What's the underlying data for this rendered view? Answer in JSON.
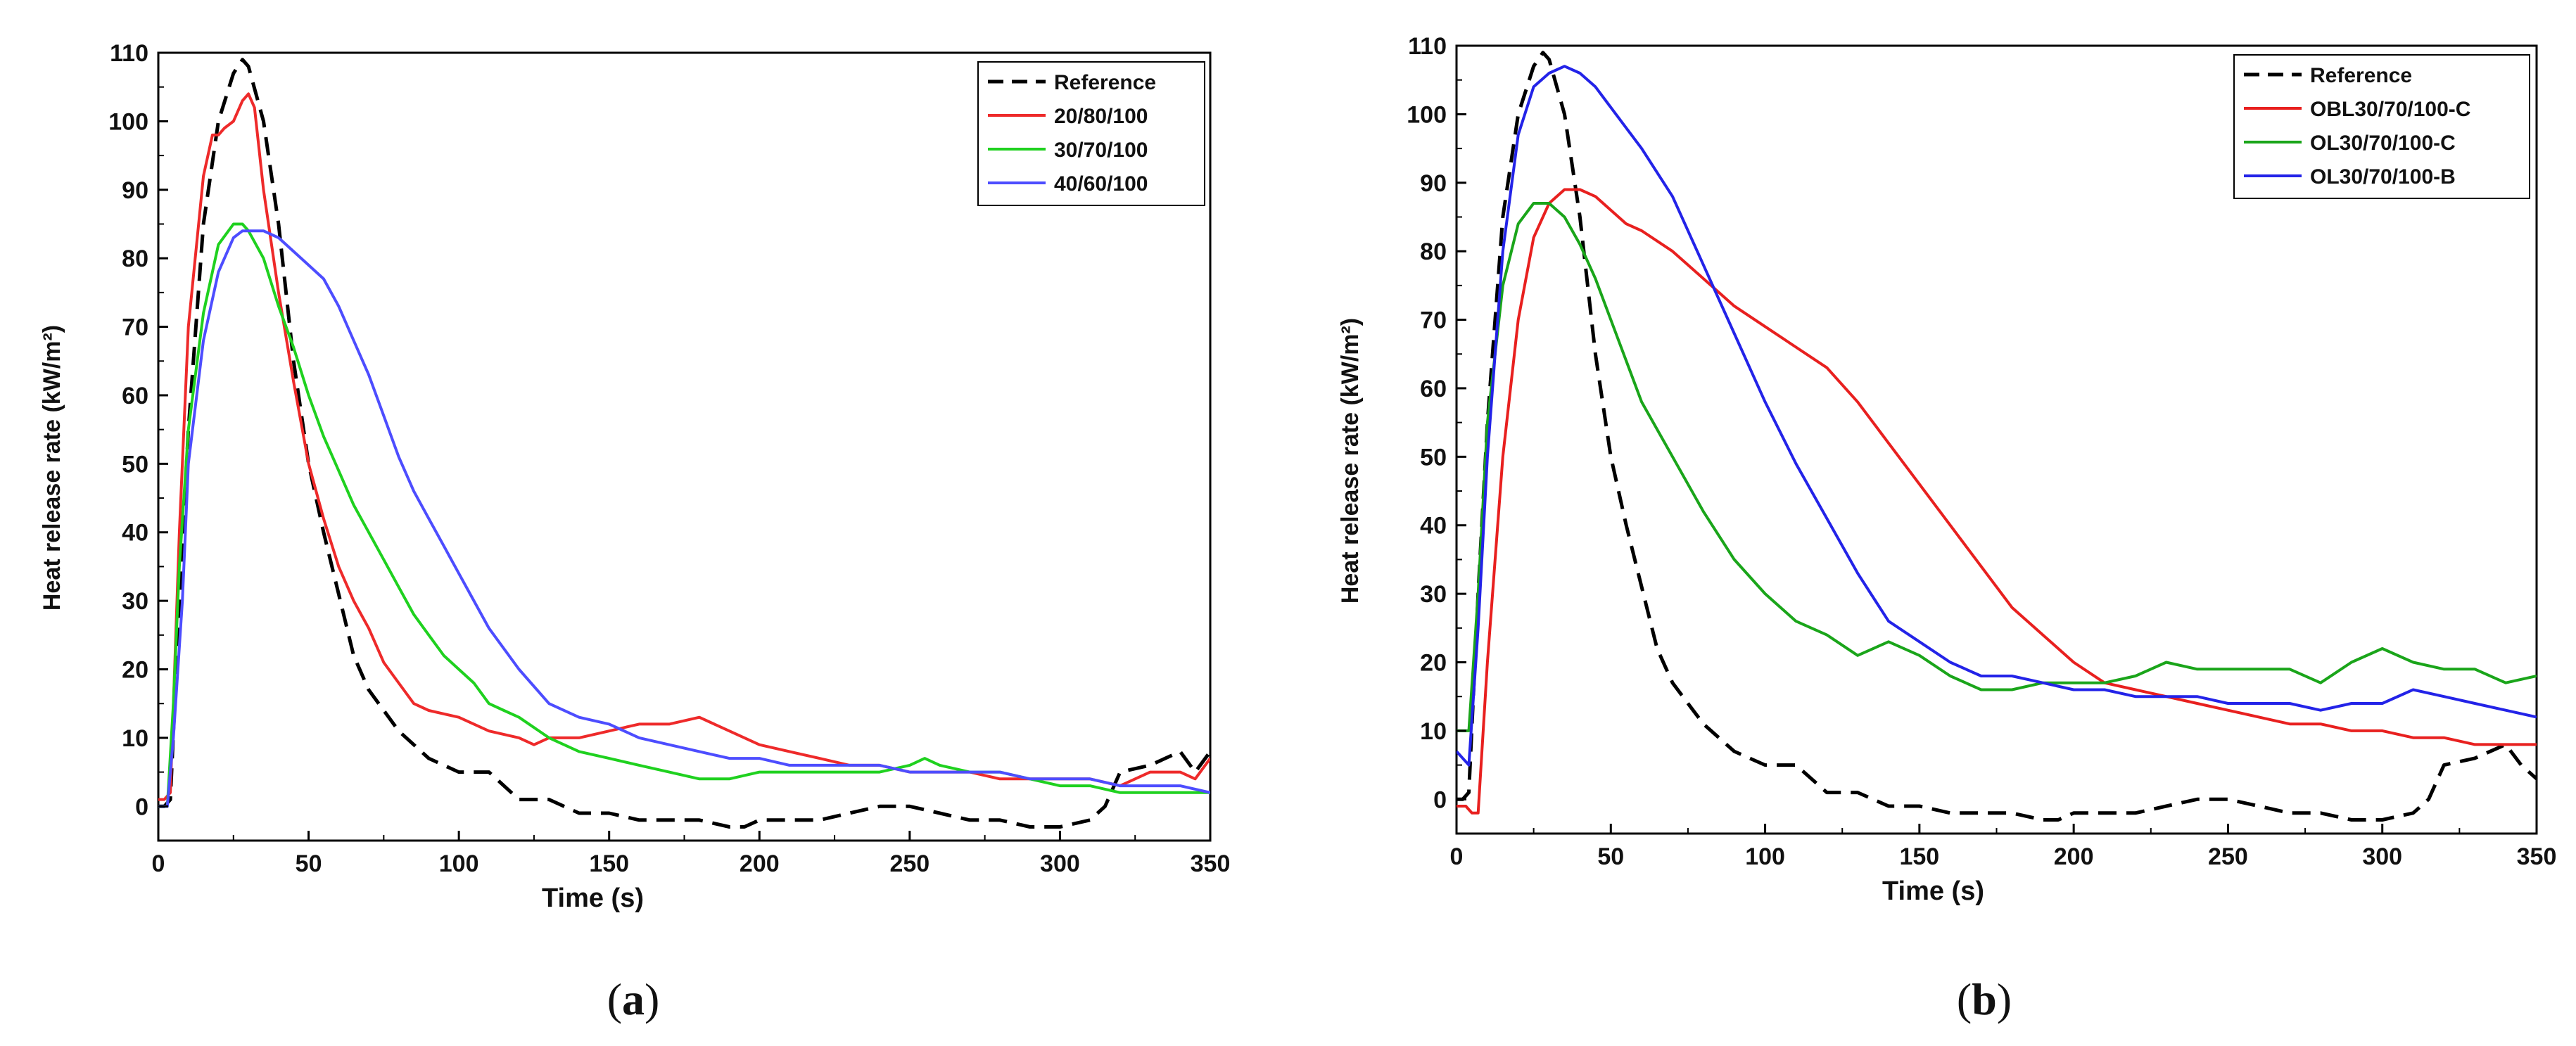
{
  "figure": {
    "panels": [
      {
        "caption_open": "(",
        "caption_letter": "a",
        "caption_close": ")"
      },
      {
        "caption_open": "(",
        "caption_letter": "b",
        "caption_close": ")"
      }
    ]
  },
  "chart_data": [
    {
      "type": "line",
      "panel": "a",
      "title": "",
      "xlabel": "Time (s)",
      "ylabel": "Heat release rate (kW/m²)",
      "xlim": [
        0,
        350
      ],
      "ylim": [
        -5,
        110
      ],
      "xticks": [
        0,
        50,
        100,
        150,
        200,
        250,
        300,
        350
      ],
      "yticks": [
        0,
        10,
        20,
        30,
        40,
        50,
        60,
        70,
        80,
        90,
        100,
        110
      ],
      "grid": false,
      "legend_position": "top-right",
      "series": [
        {
          "name": "Reference",
          "color": "#000000",
          "dash": "dashed",
          "x": [
            0,
            2,
            4,
            7,
            10,
            15,
            20,
            25,
            28,
            30,
            35,
            40,
            45,
            50,
            55,
            60,
            65,
            70,
            75,
            80,
            85,
            90,
            95,
            100,
            110,
            120,
            130,
            140,
            150,
            160,
            170,
            180,
            190,
            195,
            200,
            210,
            220,
            230,
            240,
            250,
            260,
            270,
            280,
            290,
            300,
            310,
            315,
            320,
            330,
            340,
            345,
            350
          ],
          "y": [
            0,
            0,
            1,
            30,
            55,
            85,
            100,
            107,
            109,
            108,
            100,
            85,
            65,
            50,
            40,
            31,
            22,
            17,
            14,
            11,
            9,
            7,
            6,
            5,
            5,
            1,
            1,
            -1,
            -1,
            -2,
            -2,
            -2,
            -3,
            -3,
            -2,
            -2,
            -2,
            -1,
            0,
            0,
            -1,
            -2,
            -2,
            -3,
            -3,
            -2,
            0,
            5,
            6,
            8,
            5,
            8
          ]
        },
        {
          "name": "20/80/100",
          "color": "#ee2a2a",
          "dash": "solid",
          "x": [
            0,
            2,
            4,
            7,
            10,
            15,
            18,
            20,
            22,
            25,
            28,
            30,
            32,
            35,
            40,
            45,
            50,
            55,
            60,
            65,
            70,
            75,
            80,
            85,
            90,
            100,
            110,
            120,
            125,
            130,
            140,
            150,
            160,
            170,
            180,
            190,
            200,
            210,
            220,
            230,
            240,
            250,
            260,
            270,
            280,
            290,
            300,
            310,
            320,
            330,
            340,
            345,
            350
          ],
          "y": [
            1,
            1,
            2,
            40,
            70,
            92,
            98,
            98,
            99,
            100,
            103,
            104,
            102,
            90,
            75,
            62,
            50,
            42,
            35,
            30,
            26,
            21,
            18,
            15,
            14,
            13,
            11,
            10,
            9,
            10,
            10,
            11,
            12,
            12,
            13,
            11,
            9,
            8,
            7,
            6,
            6,
            5,
            5,
            5,
            4,
            4,
            4,
            4,
            3,
            5,
            5,
            4,
            7
          ]
        },
        {
          "name": "30/70/100",
          "color": "#1fd11f",
          "dash": "solid",
          "x": [
            0,
            3,
            5,
            7,
            10,
            15,
            20,
            25,
            28,
            30,
            35,
            40,
            45,
            50,
            55,
            60,
            65,
            70,
            75,
            80,
            85,
            90,
            95,
            100,
            105,
            110,
            115,
            120,
            130,
            140,
            150,
            160,
            170,
            180,
            190,
            200,
            210,
            220,
            230,
            240,
            250,
            255,
            260,
            270,
            280,
            290,
            300,
            310,
            320,
            330,
            340,
            350
          ],
          "y": [
            0,
            0,
            15,
            35,
            55,
            72,
            82,
            85,
            85,
            84,
            80,
            73,
            67,
            60,
            54,
            49,
            44,
            40,
            36,
            32,
            28,
            25,
            22,
            20,
            18,
            15,
            14,
            13,
            10,
            8,
            7,
            6,
            5,
            4,
            4,
            5,
            5,
            5,
            5,
            5,
            6,
            7,
            6,
            5,
            5,
            4,
            3,
            3,
            2,
            2,
            2,
            2
          ]
        },
        {
          "name": "40/60/100",
          "color": "#4d4dff",
          "dash": "solid",
          "x": [
            0,
            3,
            5,
            8,
            10,
            15,
            20,
            25,
            28,
            30,
            35,
            40,
            45,
            50,
            55,
            60,
            65,
            70,
            75,
            80,
            85,
            90,
            95,
            100,
            105,
            110,
            120,
            130,
            140,
            150,
            160,
            170,
            180,
            190,
            200,
            210,
            220,
            230,
            240,
            250,
            260,
            270,
            280,
            290,
            300,
            310,
            320,
            330,
            340,
            350
          ],
          "y": [
            0,
            0,
            10,
            30,
            50,
            68,
            78,
            83,
            84,
            84,
            84,
            83,
            81,
            79,
            77,
            73,
            68,
            63,
            57,
            51,
            46,
            42,
            38,
            34,
            30,
            26,
            20,
            15,
            13,
            12,
            10,
            9,
            8,
            7,
            7,
            6,
            6,
            6,
            6,
            5,
            5,
            5,
            5,
            4,
            4,
            4,
            3,
            3,
            3,
            2
          ]
        }
      ]
    },
    {
      "type": "line",
      "panel": "b",
      "title": "",
      "xlabel": "Time (s)",
      "ylabel": "Heat release rate (kW/m²)",
      "xlim": [
        0,
        350
      ],
      "ylim": [
        -5,
        110
      ],
      "xticks": [
        0,
        50,
        100,
        150,
        200,
        250,
        300,
        350
      ],
      "yticks": [
        0,
        10,
        20,
        30,
        40,
        50,
        60,
        70,
        80,
        90,
        100,
        110
      ],
      "grid": false,
      "legend_position": "top-right",
      "series": [
        {
          "name": "Reference",
          "color": "#000000",
          "dash": "dashed",
          "x": [
            0,
            2,
            4,
            7,
            10,
            15,
            20,
            25,
            28,
            30,
            35,
            40,
            45,
            50,
            55,
            60,
            65,
            70,
            75,
            80,
            85,
            90,
            95,
            100,
            110,
            120,
            130,
            140,
            150,
            160,
            170,
            180,
            190,
            195,
            200,
            210,
            220,
            230,
            240,
            250,
            260,
            270,
            280,
            290,
            300,
            310,
            315,
            320,
            330,
            340,
            345,
            350
          ],
          "y": [
            0,
            0,
            1,
            30,
            55,
            85,
            100,
            107,
            109,
            108,
            100,
            85,
            65,
            50,
            40,
            31,
            22,
            17,
            14,
            11,
            9,
            7,
            6,
            5,
            5,
            1,
            1,
            -1,
            -1,
            -2,
            -2,
            -2,
            -3,
            -3,
            -2,
            -2,
            -2,
            -1,
            0,
            0,
            -1,
            -2,
            -2,
            -3,
            -3,
            -2,
            0,
            5,
            6,
            8,
            5,
            3
          ]
        },
        {
          "name": "OBL30/70/100-C",
          "color": "#e8201f",
          "dash": "solid",
          "x": [
            0,
            3,
            5,
            7,
            10,
            15,
            20,
            25,
            30,
            35,
            40,
            45,
            50,
            55,
            60,
            70,
            80,
            90,
            100,
            110,
            120,
            130,
            140,
            150,
            160,
            170,
            180,
            190,
            200,
            210,
            220,
            230,
            240,
            250,
            260,
            270,
            280,
            290,
            300,
            310,
            320,
            330,
            340,
            350
          ],
          "y": [
            -1,
            -1,
            -2,
            -2,
            20,
            50,
            70,
            82,
            87,
            89,
            89,
            88,
            86,
            84,
            83,
            80,
            76,
            72,
            69,
            66,
            63,
            58,
            52,
            46,
            40,
            34,
            28,
            24,
            20,
            17,
            16,
            15,
            14,
            13,
            12,
            11,
            11,
            10,
            10,
            9,
            9,
            8,
            8,
            8
          ]
        },
        {
          "name": "OL30/70/100-C",
          "color": "#1aa51a",
          "dash": "solid",
          "x": [
            0,
            2,
            4,
            7,
            10,
            15,
            20,
            25,
            30,
            35,
            40,
            45,
            50,
            55,
            60,
            70,
            80,
            90,
            100,
            110,
            120,
            130,
            140,
            150,
            160,
            170,
            180,
            190,
            200,
            210,
            220,
            230,
            240,
            250,
            260,
            270,
            280,
            290,
            300,
            310,
            320,
            330,
            340,
            350
          ],
          "y": [
            10,
            10,
            10,
            30,
            55,
            75,
            84,
            87,
            87,
            85,
            81,
            76,
            70,
            64,
            58,
            50,
            42,
            35,
            30,
            26,
            24,
            21,
            23,
            21,
            18,
            16,
            16,
            17,
            17,
            17,
            18,
            20,
            19,
            19,
            19,
            19,
            17,
            20,
            22,
            20,
            19,
            19,
            17,
            18
          ]
        },
        {
          "name": "OL30/70/100-B",
          "color": "#2323e8",
          "dash": "solid",
          "x": [
            0,
            2,
            4,
            7,
            10,
            15,
            20,
            25,
            30,
            35,
            40,
            45,
            50,
            55,
            60,
            70,
            80,
            90,
            100,
            110,
            120,
            130,
            140,
            150,
            160,
            170,
            180,
            190,
            200,
            210,
            220,
            230,
            240,
            250,
            260,
            270,
            280,
            290,
            300,
            310,
            320,
            330,
            340,
            350
          ],
          "y": [
            7,
            6,
            5,
            25,
            50,
            80,
            97,
            104,
            106,
            107,
            106,
            104,
            101,
            98,
            95,
            88,
            78,
            68,
            58,
            49,
            41,
            33,
            26,
            23,
            20,
            18,
            18,
            17,
            16,
            16,
            15,
            15,
            15,
            14,
            14,
            14,
            13,
            14,
            14,
            16,
            15,
            14,
            13,
            12
          ]
        }
      ]
    }
  ]
}
